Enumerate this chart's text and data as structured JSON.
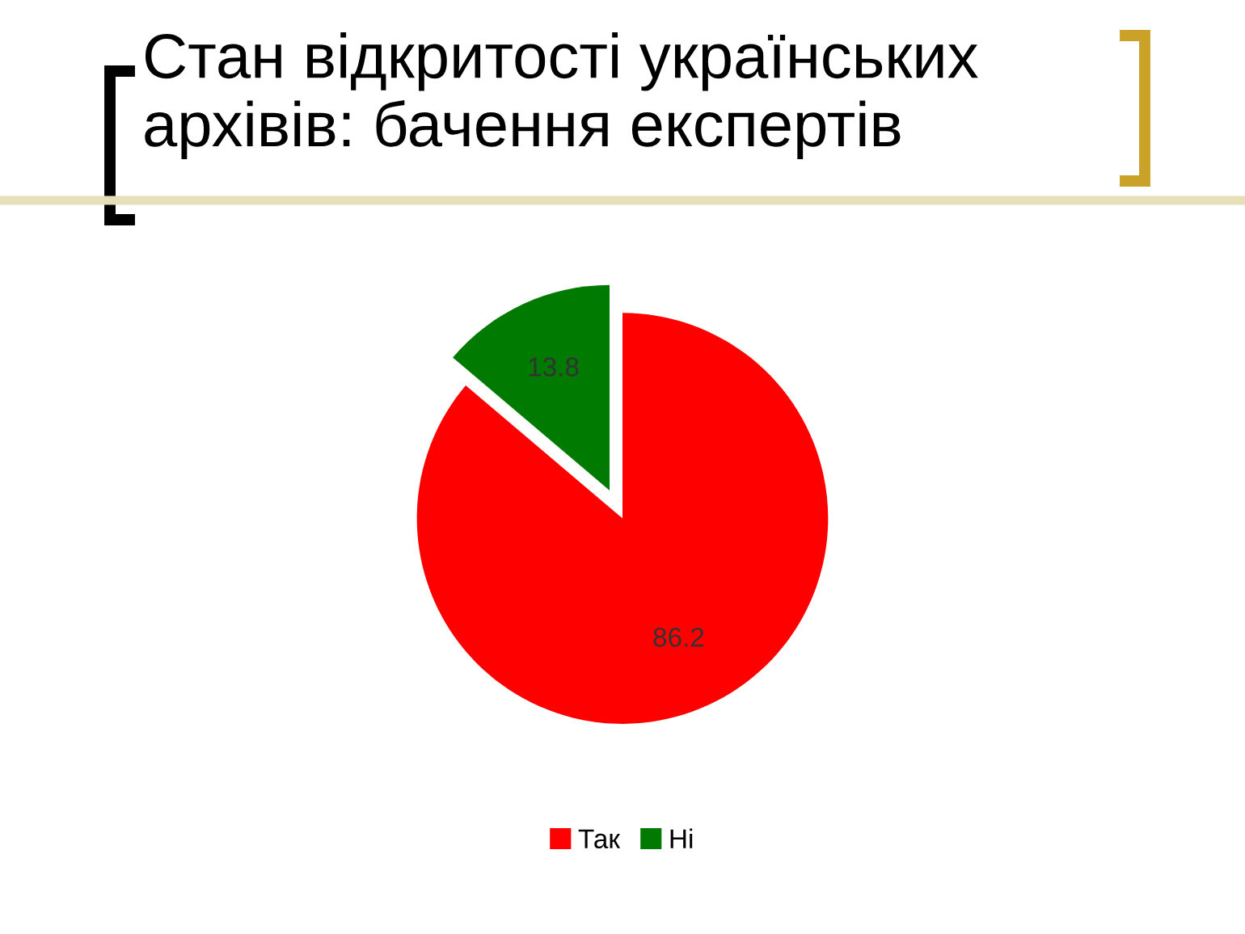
{
  "chart_data": {
    "type": "pie",
    "title": "Стан відкритості українських архівів: бачення експертів",
    "categories": [
      "Так",
      "Ні"
    ],
    "values": [
      86.2,
      13.8
    ],
    "colors": [
      "#ff0000",
      "#007a00"
    ],
    "data_labels": true,
    "legend": "bottom"
  }
}
